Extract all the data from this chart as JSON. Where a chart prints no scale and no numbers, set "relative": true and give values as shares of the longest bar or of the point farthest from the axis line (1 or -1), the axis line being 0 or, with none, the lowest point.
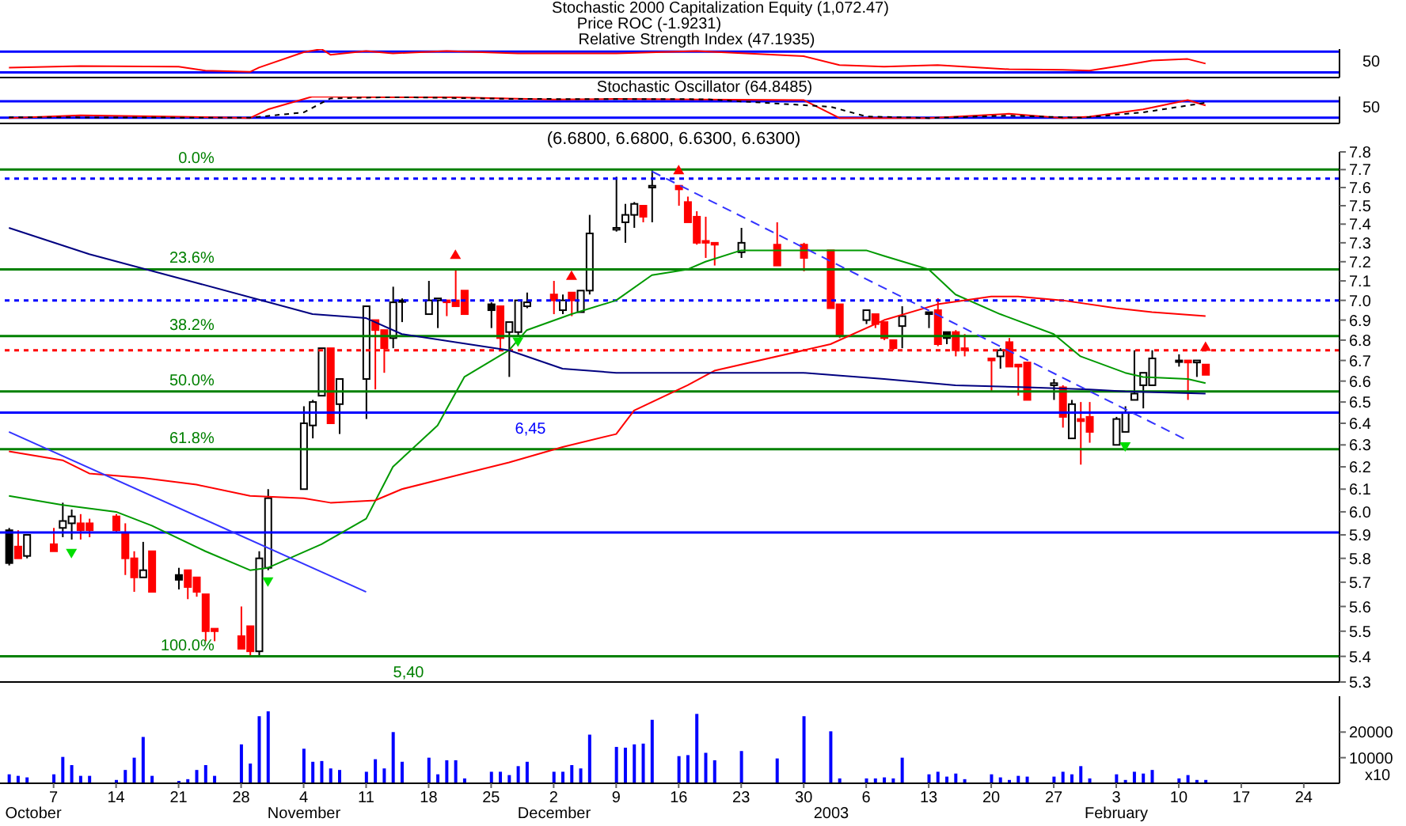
{
  "chart_data": [
    {
      "type": "line",
      "relative": true,
      "annotations": [
        "Stochastic 2000 Capitalization Equity (1,072.47)",
        "Price ROC (-1.9231)",
        "Relative Strength Index (47.1935)",
        "50"
      ],
      "xlim": [
        "2002-10-01",
        "2003-02-28"
      ],
      "tick_labels": false,
      "ref_lines": [
        {
          "axis": "y",
          "value": 0.18,
          "color": "#0000ff"
        },
        {
          "axis": "y",
          "value": 0.91,
          "color": "#0000ff"
        }
      ],
      "series": [
        {
          "type": "line",
          "color": "#ff0000",
          "x": [
            "2002-10-02",
            "2002-10-10",
            "2002-10-21",
            "2002-10-24",
            "2002-10-29",
            "2002-10-30",
            "2002-11-04",
            "2002-11-06",
            "2002-11-07",
            "2002-11-11",
            "2002-11-14",
            "2002-11-20",
            "2002-11-28",
            "2002-12-09",
            "2002-12-18",
            "2002-12-30",
            "2003-01-03",
            "2003-01-08",
            "2003-01-14",
            "2003-01-22",
            "2003-01-28",
            "2003-01-31",
            "2003-02-04",
            "2003-02-07",
            "2003-02-11",
            "2003-02-13"
          ],
          "values": [
            0.35,
            0.4,
            0.38,
            0.24,
            0.2,
            0.35,
            0.89,
            1,
            0.8,
            0.93,
            0.85,
            0.93,
            0.85,
            0.85,
            0.93,
            0.75,
            0.44,
            0.38,
            0.44,
            0.29,
            0.27,
            0.24,
            0.44,
            0.6,
            0.65,
            0.49
          ]
        }
      ]
    },
    {
      "type": "line",
      "relative": true,
      "annotations": [
        "Stochastic Oscillator (64.8485)",
        "50"
      ],
      "xlim": [
        "2002-10-01",
        "2003-02-28"
      ],
      "tick_labels": false,
      "ref_lines": [
        {
          "axis": "y",
          "value": 0.21,
          "color": "#0000ff"
        },
        {
          "axis": "y",
          "value": 0.82,
          "color": "#0000ff"
        }
      ],
      "series": [
        {
          "type": "line",
          "color": "#ff0000",
          "x": [
            "2002-10-02",
            "2002-10-10",
            "2002-10-21",
            "2002-10-29",
            "2002-10-31",
            "2002-11-05",
            "2002-11-14",
            "2002-11-21",
            "2002-11-27",
            "2002-12-02",
            "2002-12-09",
            "2002-12-18",
            "2002-12-30",
            "2003-01-03",
            "2003-01-13",
            "2003-01-22",
            "2003-01-28",
            "2003-01-31",
            "2003-02-06",
            "2003-02-11",
            "2003-02-13"
          ],
          "values": [
            0.2,
            0.3,
            0.25,
            0.2,
            0.52,
            1,
            0.97,
            0.97,
            0.93,
            0.89,
            0.91,
            0.89,
            0.87,
            0.2,
            0.2,
            0.36,
            0.2,
            0.25,
            0.52,
            0.87,
            0.67
          ]
        },
        {
          "type": "line",
          "color": "#000000",
          "line_style": "dotted",
          "x": [
            "2002-10-02",
            "2002-10-29",
            "2002-11-04",
            "2002-11-07",
            "2002-11-14",
            "2002-11-28",
            "2002-12-19",
            "2003-01-02",
            "2003-01-06",
            "2003-01-13",
            "2003-01-22",
            "2003-01-30",
            "2003-02-06",
            "2003-02-13"
          ],
          "values": [
            0.23,
            0.21,
            0.41,
            0.93,
            0.98,
            0.91,
            0.9,
            0.62,
            0.26,
            0.2,
            0.29,
            0.21,
            0.41,
            0.77
          ]
        }
      ]
    },
    {
      "type": "candlestick",
      "title": "(6.6800, 6.6800, 6.6300, 6.6300)",
      "log": true,
      "tick_labels": "y",
      "xlim": [
        "2002-10-01",
        "2003-02-28"
      ],
      "ylim": [
        5.3,
        7.8
      ],
      "yticks": [
        5.3,
        5.4,
        5.5,
        5.6,
        5.7,
        5.8,
        5.9,
        {
          "value": 6,
          "label": "6.0"
        },
        6.1,
        6.2,
        6.3,
        6.4,
        6.5,
        6.6,
        6.7,
        6.8,
        6.9,
        {
          "value": 7,
          "label": "7.0"
        },
        7.1,
        7.2,
        7.3,
        7.4,
        7.5,
        7.6,
        7.7,
        7.8
      ],
      "x": [
        "2002-10-02",
        "2002-10-03",
        "2002-10-04",
        "2002-10-07",
        "2002-10-08",
        "2002-10-09",
        "2002-10-10",
        "2002-10-11",
        "2002-10-14",
        "2002-10-15",
        "2002-10-16",
        "2002-10-17",
        "2002-10-18",
        "2002-10-21",
        "2002-10-22",
        "2002-10-23",
        "2002-10-24",
        "2002-10-25",
        "2002-10-28",
        "2002-10-29",
        "2002-10-30",
        "2002-10-31",
        "2002-11-04",
        "2002-11-05",
        "2002-11-06",
        "2002-11-07",
        "2002-11-08",
        "2002-11-11",
        "2002-11-12",
        "2002-11-13",
        "2002-11-14",
        "2002-11-15",
        "2002-11-18",
        "2002-11-19",
        "2002-11-20",
        "2002-11-21",
        "2002-11-22",
        "2002-11-25",
        "2002-11-26",
        "2002-11-27",
        "2002-11-28",
        "2002-11-29",
        "2002-12-02",
        "2002-12-03",
        "2002-12-04",
        "2002-12-05",
        "2002-12-06",
        "2002-12-09",
        "2002-12-10",
        "2002-12-11",
        "2002-12-12",
        "2002-12-13",
        "2002-12-16",
        "2002-12-17",
        "2002-12-18",
        "2002-12-19",
        "2002-12-20",
        "2002-12-23",
        "2002-12-27",
        "2002-12-30",
        "2003-01-02",
        "2003-01-03",
        "2003-01-06",
        "2003-01-07",
        "2003-01-08",
        "2003-01-09",
        "2003-01-10",
        "2003-01-13",
        "2003-01-14",
        "2003-01-15",
        "2003-01-16",
        "2003-01-17",
        "2003-01-20",
        "2003-01-21",
        "2003-01-22",
        "2003-01-23",
        "2003-01-24",
        "2003-01-27",
        "2003-01-28",
        "2003-01-29",
        "2003-01-30",
        "2003-01-31",
        "2003-02-03",
        "2003-02-04",
        "2003-02-05",
        "2003-02-06",
        "2003-02-07",
        "2003-02-10",
        "2003-02-11",
        "2003-02-12",
        "2003-02-13"
      ],
      "ohlc": [
        [
          5.92,
          5.93,
          5.77,
          5.78
        ],
        [
          5.85,
          5.92,
          5.8,
          5.8
        ],
        [
          5.81,
          5.9,
          5.8,
          5.9
        ],
        [
          5.86,
          5.93,
          5.83,
          5.83
        ],
        [
          5.93,
          6.04,
          5.89,
          5.96
        ],
        [
          5.95,
          6.01,
          5.88,
          5.98
        ],
        [
          5.95,
          5.99,
          5.88,
          5.92
        ],
        [
          5.95,
          5.97,
          5.89,
          5.92
        ],
        [
          5.98,
          5.99,
          5.91,
          5.92
        ],
        [
          5.91,
          5.95,
          5.73,
          5.8
        ],
        [
          5.8,
          5.83,
          5.66,
          5.72
        ],
        [
          5.72,
          5.87,
          5.72,
          5.75
        ],
        [
          5.83,
          5.83,
          5.66,
          5.66
        ],
        [
          5.73,
          5.76,
          5.67,
          5.71
        ],
        [
          5.75,
          5.75,
          5.63,
          5.68
        ],
        [
          5.72,
          5.72,
          5.64,
          5.66
        ],
        [
          5.65,
          5.65,
          5.46,
          5.5
        ],
        [
          5.51,
          5.51,
          5.46,
          5.5
        ],
        [
          5.48,
          5.6,
          5.43,
          5.43
        ],
        [
          5.52,
          5.52,
          5.4,
          5.42
        ],
        [
          5.42,
          5.83,
          5.4,
          5.8
        ],
        [
          5.76,
          6.1,
          5.75,
          6.06
        ],
        [
          6.1,
          6.48,
          6.1,
          6.4
        ],
        [
          6.39,
          6.51,
          6.33,
          6.5
        ],
        [
          6.53,
          6.76,
          6.53,
          6.76
        ],
        [
          6.76,
          6.76,
          6.4,
          6.4
        ],
        [
          6.49,
          6.61,
          6.35,
          6.61
        ],
        [
          6.61,
          6.97,
          6.42,
          6.97
        ],
        [
          6.9,
          6.9,
          6.56,
          6.85
        ],
        [
          6.85,
          6.85,
          6.64,
          6.76
        ],
        [
          6.81,
          7.07,
          6.76,
          6.99
        ],
        [
          7.0,
          7.01,
          6.89,
          7.0
        ],
        [
          6.93,
          7.1,
          6.93,
          7.0
        ],
        [
          7.0,
          7.01,
          6.86,
          7.01
        ],
        [
          7.0,
          7.0,
          6.92,
          6.99
        ],
        [
          7.0,
          7.16,
          6.97,
          6.97
        ],
        [
          7.05,
          7.05,
          6.93,
          6.93
        ],
        [
          6.98,
          6.99,
          6.86,
          6.95
        ],
        [
          6.97,
          6.97,
          6.75,
          6.81
        ],
        [
          6.84,
          6.89,
          6.62,
          6.89
        ],
        [
          6.84,
          7.0,
          6.82,
          7.0
        ],
        [
          6.97,
          7.04,
          6.96,
          6.99
        ],
        [
          7.03,
          7.1,
          6.93,
          7.0
        ],
        [
          6.95,
          7.03,
          6.93,
          7.0
        ],
        [
          7.04,
          7.04,
          6.92,
          7.0
        ],
        [
          6.94,
          7.05,
          6.94,
          7.05
        ],
        [
          7.05,
          7.45,
          7.03,
          7.35
        ],
        [
          7.37,
          7.66,
          7.36,
          7.38
        ],
        [
          7.41,
          7.51,
          7.3,
          7.45
        ],
        [
          7.45,
          7.52,
          7.38,
          7.51
        ],
        [
          7.5,
          7.5,
          7.41,
          7.44
        ],
        [
          7.6,
          7.7,
          7.41,
          7.61
        ],
        [
          7.61,
          7.61,
          7.5,
          7.59
        ],
        [
          7.52,
          7.55,
          7.41,
          7.41
        ],
        [
          7.44,
          7.47,
          7.29,
          7.3
        ],
        [
          7.31,
          7.44,
          7.22,
          7.3
        ],
        [
          7.3,
          7.3,
          7.18,
          7.29
        ],
        [
          7.25,
          7.38,
          7.22,
          7.3
        ],
        [
          7.29,
          7.41,
          7.18,
          7.18
        ],
        [
          7.29,
          7.3,
          7.15,
          7.22
        ],
        [
          7.26,
          7.26,
          6.96,
          6.96
        ],
        [
          6.98,
          6.98,
          6.81,
          6.82
        ],
        [
          6.9,
          6.95,
          6.88,
          6.95
        ],
        [
          6.93,
          6.93,
          6.86,
          6.88
        ],
        [
          6.89,
          6.89,
          6.8,
          6.81
        ],
        [
          6.8,
          6.8,
          6.75,
          6.76
        ],
        [
          6.87,
          6.97,
          6.76,
          6.92
        ],
        [
          6.94,
          6.94,
          6.86,
          6.93
        ],
        [
          6.95,
          7.01,
          6.77,
          6.78
        ],
        [
          6.84,
          6.84,
          6.78,
          6.81
        ],
        [
          6.84,
          6.85,
          6.72,
          6.75
        ],
        [
          6.76,
          6.83,
          6.72,
          6.75
        ],
        [
          6.71,
          6.71,
          6.55,
          6.7
        ],
        [
          6.72,
          6.76,
          6.66,
          6.75
        ],
        [
          6.79,
          6.81,
          6.67,
          6.67
        ],
        [
          6.68,
          6.68,
          6.53,
          6.67
        ],
        [
          6.69,
          6.69,
          6.51,
          6.51
        ],
        [
          6.58,
          6.61,
          6.51,
          6.59
        ],
        [
          6.57,
          6.58,
          6.38,
          6.43
        ],
        [
          6.33,
          6.51,
          6.33,
          6.49
        ],
        [
          6.42,
          6.5,
          6.21,
          6.41
        ],
        [
          6.43,
          6.5,
          6.31,
          6.36
        ],
        [
          6.3,
          6.43,
          6.3,
          6.42
        ],
        [
          6.36,
          6.48,
          6.36,
          6.45
        ],
        [
          6.51,
          6.75,
          6.51,
          6.54
        ],
        [
          6.58,
          6.64,
          6.47,
          6.64
        ],
        [
          6.58,
          6.75,
          6.58,
          6.71
        ],
        [
          6.7,
          6.73,
          6.67,
          6.7
        ],
        [
          6.7,
          6.7,
          6.51,
          6.69
        ],
        [
          6.69,
          6.7,
          6.62,
          6.7
        ],
        [
          6.68,
          6.68,
          6.63,
          6.63
        ]
      ],
      "colors": [
        "#000000",
        "#ff0000",
        "#ffffff",
        "#ff0000",
        "#ffffff",
        "#ffffff",
        "#ff0000",
        "#ff0000",
        "#ff0000",
        "#ff0000",
        "#ff0000",
        "#ffffff",
        "#ff0000",
        "#000000",
        "#ff0000",
        "#ff0000",
        "#ff0000",
        "#ff0000",
        "#ff0000",
        "#ff0000",
        "#ffffff",
        "#ffffff",
        "#ffffff",
        "#ffffff",
        "#ffffff",
        "#ff0000",
        "#ffffff",
        "#ffffff",
        "#ff0000",
        "#ff0000",
        "#ffffff",
        "#ffffff",
        "#ffffff",
        "#ffffff",
        "#ff0000",
        "#ff0000",
        "#ff0000",
        "#000000",
        "#ff0000",
        "#ffffff",
        "#ffffff",
        "#ffffff",
        "#ff0000",
        "#ffffff",
        "#ff0000",
        "#ffffff",
        "#ffffff",
        "#ffffff",
        "#ffffff",
        "#ffffff",
        "#ff0000",
        "#ffffff",
        "#ff0000",
        "#ff0000",
        "#ff0000",
        "#ff0000",
        "#ff0000",
        "#ffffff",
        "#ff0000",
        "#ff0000",
        "#ff0000",
        "#ff0000",
        "#ffffff",
        "#ff0000",
        "#ff0000",
        "#ff0000",
        "#ffffff",
        "#000000",
        "#ff0000",
        "#000000",
        "#ff0000",
        "#ff0000",
        "#ff0000",
        "#ffffff",
        "#ff0000",
        "#ff0000",
        "#ff0000",
        "#ffffff",
        "#ff0000",
        "#ffffff",
        "#ff0000",
        "#ff0000",
        "#ffffff",
        "#ffffff",
        "#ffffff",
        "#ffffff",
        "#ffffff",
        "#ffffff",
        "#ff0000",
        "#ffffff",
        "#ff0000"
      ],
      "ref_lines": [
        {
          "axis": "y",
          "value": 5.4,
          "label": "5,40",
          "color": "#008000"
        },
        {
          "axis": "y",
          "value": 6.45,
          "label": "6,45",
          "color": "#0000ff"
        },
        {
          "axis": "y",
          "value": 7.7,
          "color": "#008000"
        },
        {
          "axis": "y",
          "value": 7.16,
          "color": "#008000"
        },
        {
          "axis": "y",
          "value": 6.82,
          "color": "#008000"
        },
        {
          "axis": "y",
          "value": 6.55,
          "color": "#008000"
        },
        {
          "axis": "y",
          "value": 6.28,
          "color": "#008000"
        },
        {
          "axis": "y",
          "value": 5.91,
          "color": "#0000ff"
        },
        {
          "axis": "y",
          "value": 7.65,
          "color": "#0000ff",
          "line_style": "dotted"
        },
        {
          "axis": "y",
          "value": 7.0,
          "color": "#0000ff",
          "line_style": "dotted"
        },
        {
          "axis": "y",
          "value": 6.75,
          "color": "#ff0000",
          "line_style": "dotted"
        }
      ],
      "annotations": [
        {
          "text": "0.0%",
          "x": "2002-10-25",
          "y": 7.7
        },
        {
          "text": "23.6%",
          "x": "2002-10-25",
          "y": 7.16
        },
        {
          "text": "38.2%",
          "x": "2002-10-25",
          "y": 6.82
        },
        {
          "text": "50.0%",
          "x": "2002-10-25",
          "y": 6.55
        },
        {
          "text": "61.8%",
          "x": "2002-10-25",
          "y": 6.28
        },
        {
          "text": "100.0%",
          "x": "2002-10-25",
          "y": 5.4
        }
      ],
      "series": [
        {
          "type": "line",
          "color": "#009900",
          "x": [
            "2002-10-02",
            "2002-10-08",
            "2002-10-14",
            "2002-10-18",
            "2002-10-24",
            "2002-10-29",
            "2002-10-31",
            "2002-11-06",
            "2002-11-11",
            "2002-11-14",
            "2002-11-19",
            "2002-11-22",
            "2002-11-27",
            "2002-11-29",
            "2002-12-04",
            "2002-12-09",
            "2002-12-13",
            "2002-12-17",
            "2002-12-19",
            "2002-12-23",
            "2003-01-06",
            "2003-01-08",
            "2003-01-13",
            "2003-01-16",
            "2003-01-21",
            "2003-01-27",
            "2003-01-30",
            "2003-02-04",
            "2003-02-06",
            "2003-02-11",
            "2003-02-13"
          ],
          "values": [
            6.07,
            6.03,
            6.0,
            5.94,
            5.83,
            5.75,
            5.76,
            5.86,
            5.97,
            6.2,
            6.39,
            6.62,
            6.75,
            6.85,
            6.93,
            7.0,
            7.13,
            7.16,
            7.2,
            7.26,
            7.26,
            7.23,
            7.16,
            7.03,
            6.93,
            6.83,
            6.72,
            6.64,
            6.62,
            6.61,
            6.59
          ]
        },
        {
          "type": "line",
          "color": "#ff0000",
          "x": [
            "2002-10-02",
            "2002-10-08",
            "2002-10-11",
            "2002-10-17",
            "2002-10-23",
            "2002-10-29",
            "2002-11-04",
            "2002-11-07",
            "2002-11-12",
            "2002-11-15",
            "2002-11-21",
            "2002-11-27",
            "2002-12-03",
            "2002-12-09",
            "2002-12-11",
            "2002-12-17",
            "2002-12-20",
            "2003-01-02",
            "2003-01-08",
            "2003-01-14",
            "2003-01-20",
            "2003-01-23",
            "2003-01-28",
            "2003-02-03",
            "2003-02-07",
            "2003-02-13"
          ],
          "values": [
            6.27,
            6.23,
            6.17,
            6.15,
            6.12,
            6.07,
            6.06,
            6.04,
            6.05,
            6.1,
            6.16,
            6.22,
            6.29,
            6.35,
            6.46,
            6.58,
            6.65,
            6.78,
            6.9,
            6.98,
            7.02,
            7.02,
            7.0,
            6.96,
            6.94,
            6.92
          ]
        },
        {
          "type": "line",
          "color": "#000080",
          "x": [
            "2002-10-02",
            "2002-10-11",
            "2002-10-23",
            "2002-11-05",
            "2002-11-11",
            "2002-11-15",
            "2002-11-21",
            "2002-11-27",
            "2002-12-03",
            "2002-12-09",
            "2002-12-17",
            "2002-12-30",
            "2003-01-08",
            "2003-01-16",
            "2003-01-24",
            "2003-01-31",
            "2003-02-04",
            "2003-02-13"
          ],
          "values": [
            7.38,
            7.24,
            7.09,
            6.93,
            6.91,
            6.83,
            6.79,
            6.75,
            6.66,
            6.64,
            6.64,
            6.64,
            6.61,
            6.58,
            6.57,
            6.56,
            6.55,
            6.54
          ]
        },
        {
          "type": "line",
          "color": "#3333ff",
          "x": [
            "2002-10-02",
            "2002-11-11"
          ],
          "values": [
            6.36,
            5.66
          ]
        },
        {
          "type": "line",
          "color": "#3333ff",
          "line_style": "dashed",
          "x": [
            "2002-12-13",
            "2003-02-11"
          ],
          "values": [
            7.69,
            6.32
          ]
        },
        {
          "type": "scatter",
          "marker": "triangle",
          "color": "#ff0000",
          "x": [
            "2002-11-21",
            "2002-12-04",
            "2002-12-16",
            "2003-02-13"
          ],
          "values": [
            7.24,
            7.13,
            7.7,
            6.77
          ]
        },
        {
          "type": "scatter",
          "marker": "triangle",
          "color": "#00dd00",
          "x": [
            "2002-10-09",
            "2002-10-31",
            "2002-11-28",
            "2003-02-04"
          ],
          "values": [
            5.82,
            5.7,
            6.79,
            6.29
          ]
        }
      ]
    },
    {
      "type": "bar",
      "color": "#0000ff",
      "annotations": [
        "x10",
        "October",
        "November",
        "December",
        "2003",
        "February"
      ],
      "xlim": [
        "2002-10-01",
        "2003-02-28"
      ],
      "ylim": [
        0,
        34000
      ],
      "yticks": [
        10000,
        20000
      ],
      "xticks": [
        {
          "value": "2002-10-07",
          "label": "7"
        },
        {
          "value": "2002-10-14",
          "label": "14"
        },
        {
          "value": "2002-10-21",
          "label": "21"
        },
        {
          "value": "2002-10-28",
          "label": "28"
        },
        {
          "value": "2002-11-04",
          "label": "4"
        },
        {
          "value": "2002-11-11",
          "label": "11"
        },
        {
          "value": "2002-11-18",
          "label": "18"
        },
        {
          "value": "2002-11-25",
          "label": "25"
        },
        {
          "value": "2002-12-02",
          "label": "2"
        },
        {
          "value": "2002-12-09",
          "label": "9"
        },
        {
          "value": "2002-12-16",
          "label": "16"
        },
        {
          "value": "2002-12-23",
          "label": "23"
        },
        {
          "value": "2002-12-30",
          "label": "30"
        },
        {
          "value": "2003-01-06",
          "label": "6"
        },
        {
          "value": "2003-01-13",
          "label": "13"
        },
        {
          "value": "2003-01-20",
          "label": "20"
        },
        {
          "value": "2003-01-27",
          "label": "27"
        },
        {
          "value": "2003-02-03",
          "label": "3"
        },
        {
          "value": "2003-02-10",
          "label": "10"
        },
        {
          "value": "2003-02-17",
          "label": "17"
        },
        {
          "value": "2003-02-24",
          "label": "24"
        }
      ],
      "x": [
        "2002-10-02",
        "2002-10-03",
        "2002-10-04",
        "2002-10-07",
        "2002-10-08",
        "2002-10-09",
        "2002-10-10",
        "2002-10-11",
        "2002-10-14",
        "2002-10-15",
        "2002-10-16",
        "2002-10-17",
        "2002-10-18",
        "2002-10-21",
        "2002-10-22",
        "2002-10-23",
        "2002-10-24",
        "2002-10-25",
        "2002-10-28",
        "2002-10-29",
        "2002-10-30",
        "2002-10-31",
        "2002-11-04",
        "2002-11-05",
        "2002-11-06",
        "2002-11-07",
        "2002-11-08",
        "2002-11-11",
        "2002-11-12",
        "2002-11-13",
        "2002-11-14",
        "2002-11-15",
        "2002-11-18",
        "2002-11-19",
        "2002-11-20",
        "2002-11-21",
        "2002-11-22",
        "2002-11-25",
        "2002-11-26",
        "2002-11-27",
        "2002-11-28",
        "2002-11-29",
        "2002-12-02",
        "2002-12-03",
        "2002-12-04",
        "2002-12-05",
        "2002-12-06",
        "2002-12-09",
        "2002-12-10",
        "2002-12-11",
        "2002-12-12",
        "2002-12-13",
        "2002-12-16",
        "2002-12-17",
        "2002-12-18",
        "2002-12-19",
        "2002-12-20",
        "2002-12-23",
        "2002-12-27",
        "2002-12-30",
        "2003-01-02",
        "2003-01-03",
        "2003-01-06",
        "2003-01-07",
        "2003-01-08",
        "2003-01-09",
        "2003-01-10",
        "2003-01-13",
        "2003-01-14",
        "2003-01-15",
        "2003-01-16",
        "2003-01-17",
        "2003-01-20",
        "2003-01-21",
        "2003-01-22",
        "2003-01-23",
        "2003-01-24",
        "2003-01-27",
        "2003-01-28",
        "2003-01-29",
        "2003-01-30",
        "2003-01-31",
        "2003-02-03",
        "2003-02-04",
        "2003-02-05",
        "2003-02-06",
        "2003-02-07",
        "2003-02-10",
        "2003-02-11",
        "2003-02-12",
        "2003-02-13"
      ],
      "values": [
        3500,
        2900,
        2300,
        3500,
        10300,
        7100,
        2900,
        2900,
        1300,
        5200,
        10000,
        18100,
        2900,
        900,
        1600,
        5200,
        7100,
        2900,
        15200,
        7700,
        26200,
        28100,
        13500,
        8400,
        8700,
        5800,
        5200,
        4500,
        9400,
        5800,
        20000,
        8400,
        10000,
        3500,
        9000,
        9000,
        1900,
        4500,
        4500,
        3200,
        6700,
        8400,
        4500,
        4500,
        7100,
        5800,
        19000,
        14200,
        13900,
        15200,
        15500,
        24800,
        10600,
        11000,
        27100,
        11900,
        9000,
        12600,
        9700,
        26200,
        20300,
        1900,
        1900,
        1900,
        2300,
        1900,
        10000,
        3500,
        4500,
        2600,
        3800,
        1600,
        3500,
        2300,
        1300,
        2900,
        2600,
        2600,
        4500,
        3500,
        6700,
        1900,
        3500,
        1300,
        4500,
        3800,
        5200,
        1900,
        3200,
        1300,
        1300
      ]
    }
  ]
}
